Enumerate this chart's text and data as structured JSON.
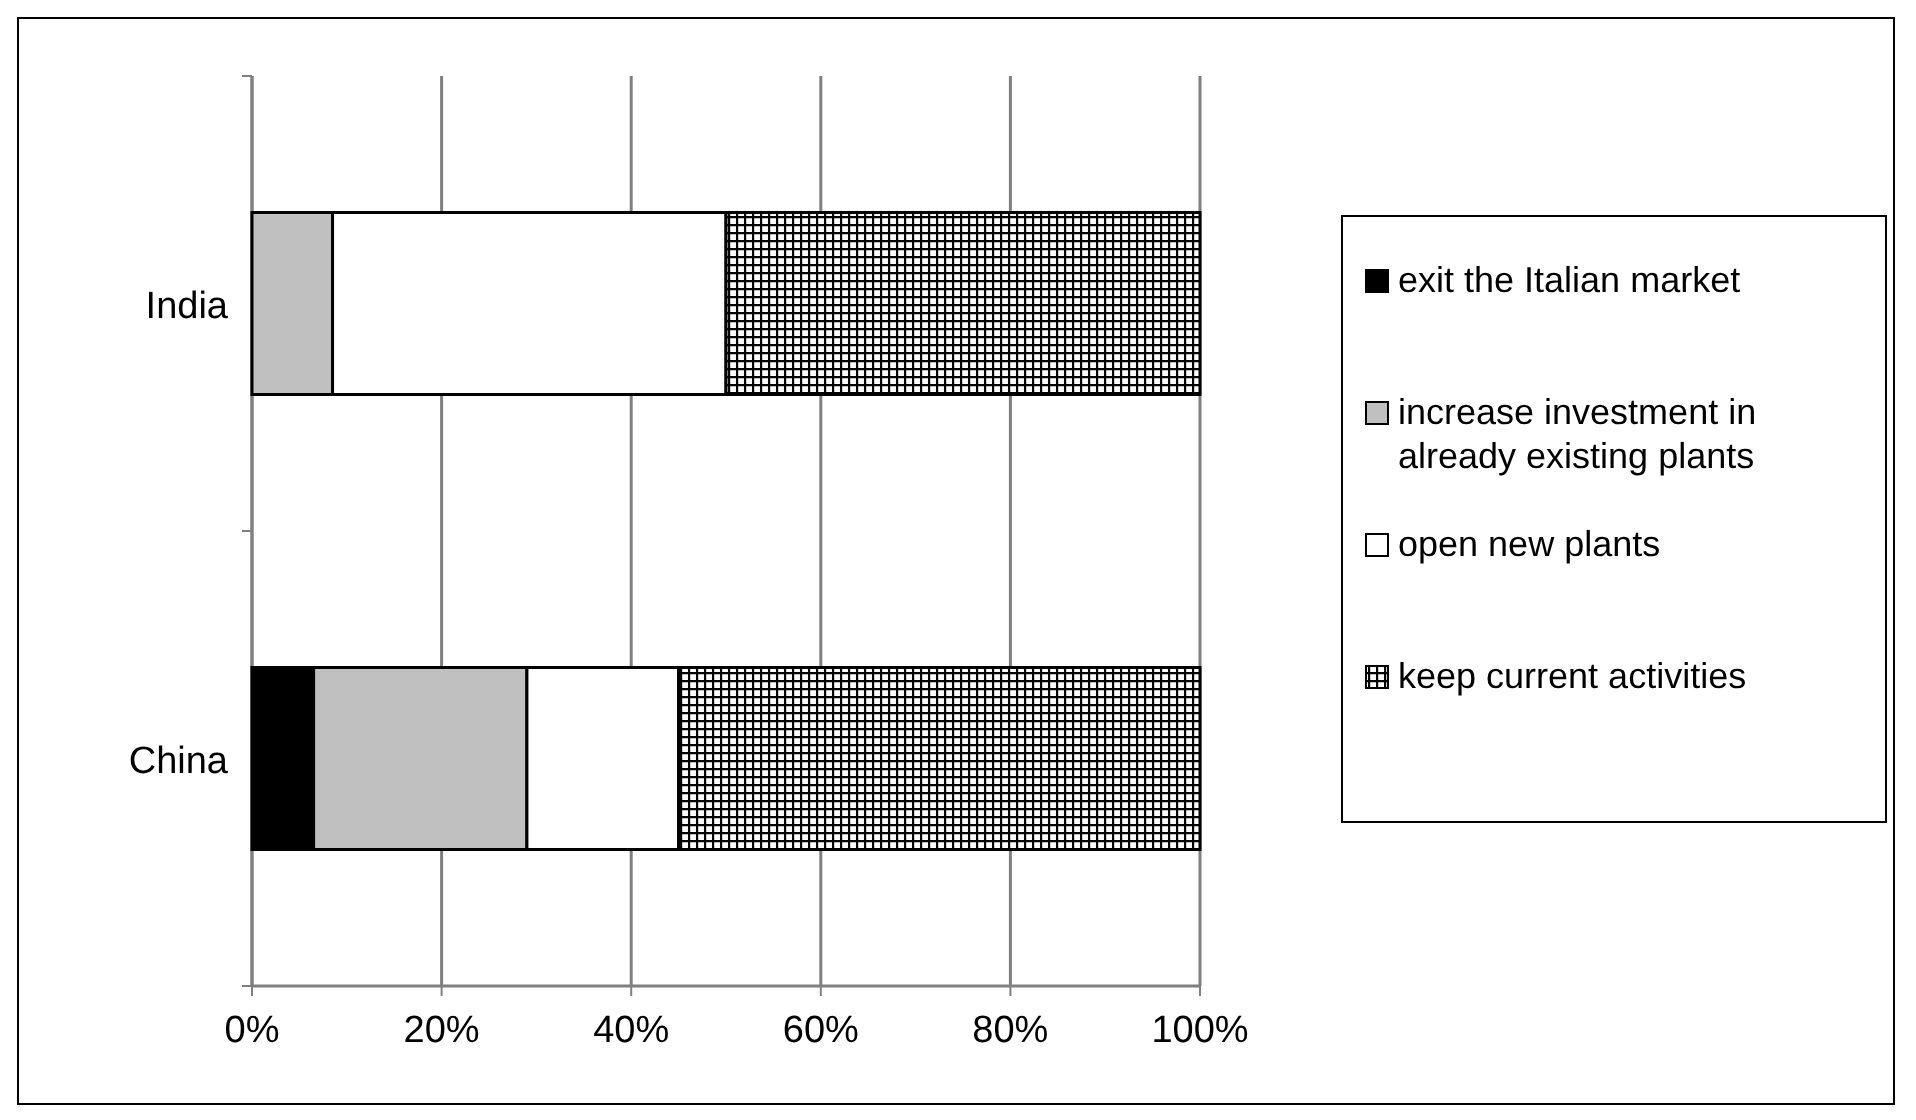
{
  "chart_data": {
    "type": "bar",
    "orientation": "horizontal",
    "stacked": true,
    "categories": [
      "India",
      "China"
    ],
    "series": [
      {
        "name": "exit the Italian market",
        "color": "#000000",
        "values": [
          0,
          6.5
        ]
      },
      {
        "name": "increase investment in already existing plants",
        "color": "#c0c0c0",
        "values": [
          8.5,
          22.5
        ]
      },
      {
        "name": "open new plants",
        "color": "#ffffff",
        "values": [
          41.5,
          16
        ]
      },
      {
        "name": "keep current activities",
        "color": "#000000",
        "values": [
          50,
          55
        ]
      }
    ],
    "xlim": [
      0,
      100
    ],
    "xticks": [
      {
        "value": 0,
        "label": "0%"
      },
      {
        "value": 20,
        "label": "20%"
      },
      {
        "value": 40,
        "label": "40%"
      },
      {
        "value": 60,
        "label": "60%"
      },
      {
        "value": 80,
        "label": "80%"
      },
      {
        "value": 100,
        "label": "100%"
      }
    ],
    "grid": "x",
    "legend": "right"
  }
}
